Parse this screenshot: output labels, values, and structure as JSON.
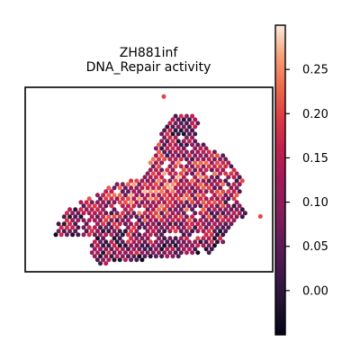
{
  "chart_data": {
    "type": "scatter",
    "title_lines": [
      "ZH881inf",
      "DNA_Repair activity"
    ],
    "xlabel": "",
    "ylabel": "",
    "grid": false,
    "axes_ticks_visible": false,
    "colorbar": {
      "colormap": "rocket",
      "range": [
        -0.05,
        0.3
      ],
      "ticks": [
        0.0,
        0.05,
        0.1,
        0.15,
        0.2,
        0.25
      ],
      "tick_labels": [
        "0.00",
        "0.05",
        "0.10",
        "0.15",
        "0.20",
        "0.25"
      ]
    },
    "spots": {
      "layout": "hexagonal spatial grid",
      "value_range_observed": [
        -0.04,
        0.29
      ],
      "outline": [
        [
          0.12,
          0.8
        ],
        [
          0.14,
          0.72
        ],
        [
          0.2,
          0.63
        ],
        [
          0.28,
          0.58
        ],
        [
          0.38,
          0.52
        ],
        [
          0.48,
          0.48
        ],
        [
          0.52,
          0.35
        ],
        [
          0.58,
          0.16
        ],
        [
          0.66,
          0.14
        ],
        [
          0.7,
          0.18
        ],
        [
          0.69,
          0.28
        ],
        [
          0.76,
          0.34
        ],
        [
          0.84,
          0.4
        ],
        [
          0.88,
          0.5
        ],
        [
          0.86,
          0.62
        ],
        [
          0.9,
          0.68
        ],
        [
          0.84,
          0.74
        ],
        [
          0.8,
          0.84
        ],
        [
          0.74,
          0.9
        ],
        [
          0.6,
          0.92
        ],
        [
          0.46,
          0.94
        ],
        [
          0.3,
          0.96
        ],
        [
          0.26,
          0.88
        ],
        [
          0.28,
          0.8
        ],
        [
          0.2,
          0.82
        ]
      ],
      "isolated": [
        [
          0.56,
          0.05
        ],
        [
          0.95,
          0.7
        ]
      ]
    }
  }
}
